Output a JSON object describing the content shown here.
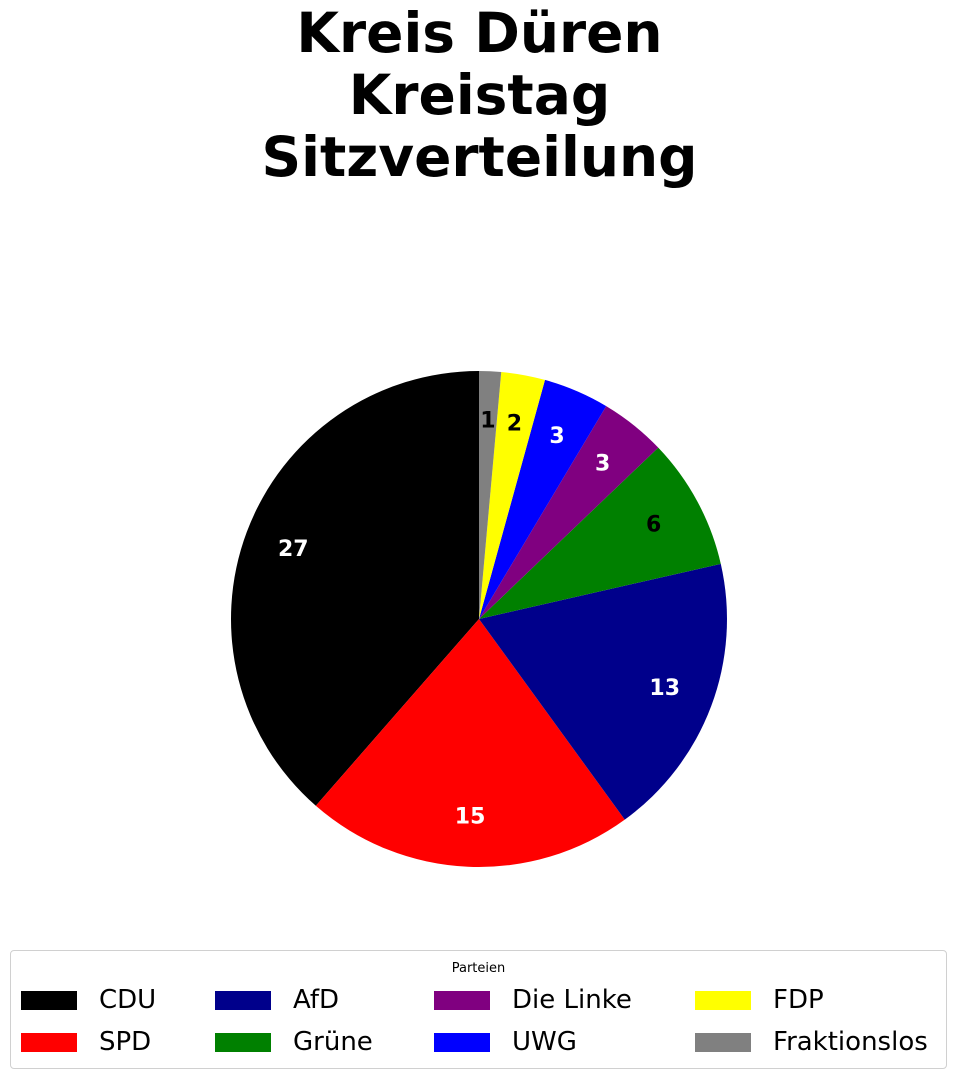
{
  "chart_data": {
    "type": "pie",
    "title": "Kreis Düren\nKreistag\nSitzverteilung",
    "categories": [
      "CDU",
      "SPD",
      "AfD",
      "Grüne",
      "Die Linke",
      "UWG",
      "FDP",
      "Fraktionslos"
    ],
    "values": [
      27,
      15,
      13,
      6,
      3,
      3,
      2,
      1
    ],
    "colors": [
      "#000000",
      "#ff0000",
      "#00008b",
      "#008000",
      "#800080",
      "#0000ff",
      "#ffff00",
      "#808080"
    ],
    "label_colors": [
      "#ffffff",
      "#ffffff",
      "#ffffff",
      "#000000",
      "#ffffff",
      "#ffffff",
      "#000000",
      "#000000"
    ],
    "start_angle": 90,
    "direction": "counterclockwise",
    "legend": {
      "title": "Parteien",
      "placement": "bottom",
      "columns": 4
    }
  }
}
